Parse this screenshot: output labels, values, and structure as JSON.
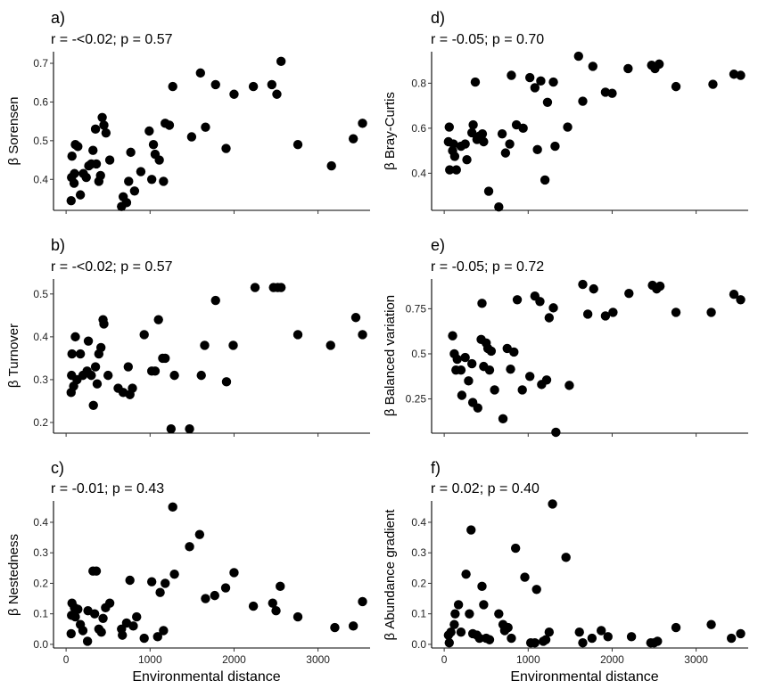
{
  "chart_data": [
    {
      "panel": "a)",
      "stat": "r = -<0.02; p = 0.57",
      "type": "scatter",
      "xlabel": "",
      "ylabel": "β Sorensen",
      "xlim": [
        -150,
        3620
      ],
      "ylim": [
        0.32,
        0.73
      ],
      "xticks": [
        {
          "v": 0,
          "t": "0"
        },
        {
          "v": 1000,
          "t": "1000"
        },
        {
          "v": 2000,
          "t": "2000"
        },
        {
          "v": 3000,
          "t": "3000"
        }
      ],
      "yticks": [
        {
          "v": 0.4,
          "t": "0.4"
        },
        {
          "v": 0.5,
          "t": "0.5"
        },
        {
          "v": 0.6,
          "t": "0.6"
        },
        {
          "v": 0.7,
          "t": "0.7"
        }
      ],
      "points": [
        [
          60,
          0.345
        ],
        [
          65,
          0.405
        ],
        [
          70,
          0.46
        ],
        [
          95,
          0.39
        ],
        [
          100,
          0.415
        ],
        [
          110,
          0.49
        ],
        [
          140,
          0.485
        ],
        [
          170,
          0.36
        ],
        [
          205,
          0.415
        ],
        [
          240,
          0.405
        ],
        [
          270,
          0.435
        ],
        [
          300,
          0.44
        ],
        [
          320,
          0.475
        ],
        [
          350,
          0.53
        ],
        [
          360,
          0.44
        ],
        [
          390,
          0.395
        ],
        [
          410,
          0.41
        ],
        [
          430,
          0.56
        ],
        [
          450,
          0.54
        ],
        [
          475,
          0.52
        ],
        [
          520,
          0.45
        ],
        [
          660,
          0.33
        ],
        [
          680,
          0.355
        ],
        [
          720,
          0.34
        ],
        [
          745,
          0.395
        ],
        [
          770,
          0.47
        ],
        [
          815,
          0.37
        ],
        [
          890,
          0.42
        ],
        [
          990,
          0.525
        ],
        [
          1020,
          0.4
        ],
        [
          1040,
          0.49
        ],
        [
          1060,
          0.465
        ],
        [
          1110,
          0.45
        ],
        [
          1160,
          0.395
        ],
        [
          1180,
          0.545
        ],
        [
          1230,
          0.54
        ],
        [
          1270,
          0.64
        ],
        [
          1495,
          0.51
        ],
        [
          1600,
          0.675
        ],
        [
          1660,
          0.535
        ],
        [
          1780,
          0.645
        ],
        [
          1905,
          0.48
        ],
        [
          2000,
          0.62
        ],
        [
          2230,
          0.64
        ],
        [
          2450,
          0.645
        ],
        [
          2510,
          0.62
        ],
        [
          2560,
          0.705
        ],
        [
          2760,
          0.49
        ],
        [
          3160,
          0.435
        ],
        [
          3420,
          0.505
        ],
        [
          3530,
          0.545
        ]
      ]
    },
    {
      "panel": "b)",
      "stat": "r = -<0.02; p = 0.57",
      "type": "scatter",
      "xlabel": "",
      "ylabel": "β Turnover",
      "xlim": [
        -150,
        3620
      ],
      "ylim": [
        0.175,
        0.535
      ],
      "xticks": [
        {
          "v": 0,
          "t": "0"
        },
        {
          "v": 1000,
          "t": "1000"
        },
        {
          "v": 2000,
          "t": "2000"
        },
        {
          "v": 3000,
          "t": "3000"
        }
      ],
      "yticks": [
        {
          "v": 0.2,
          "t": "0.2"
        },
        {
          "v": 0.3,
          "t": "0.3"
        },
        {
          "v": 0.4,
          "t": "0.4"
        },
        {
          "v": 0.5,
          "t": "0.5"
        }
      ],
      "points": [
        [
          60,
          0.27
        ],
        [
          65,
          0.31
        ],
        [
          70,
          0.36
        ],
        [
          90,
          0.285
        ],
        [
          110,
          0.4
        ],
        [
          130,
          0.3
        ],
        [
          170,
          0.36
        ],
        [
          200,
          0.31
        ],
        [
          250,
          0.32
        ],
        [
          265,
          0.39
        ],
        [
          300,
          0.31
        ],
        [
          325,
          0.24
        ],
        [
          350,
          0.33
        ],
        [
          370,
          0.29
        ],
        [
          390,
          0.36
        ],
        [
          415,
          0.375
        ],
        [
          440,
          0.44
        ],
        [
          450,
          0.43
        ],
        [
          500,
          0.31
        ],
        [
          620,
          0.28
        ],
        [
          680,
          0.27
        ],
        [
          740,
          0.33
        ],
        [
          760,
          0.265
        ],
        [
          790,
          0.28
        ],
        [
          930,
          0.405
        ],
        [
          1020,
          0.32
        ],
        [
          1060,
          0.32
        ],
        [
          1100,
          0.44
        ],
        [
          1150,
          0.35
        ],
        [
          1180,
          0.35
        ],
        [
          1250,
          0.185
        ],
        [
          1290,
          0.31
        ],
        [
          1470,
          0.185
        ],
        [
          1610,
          0.31
        ],
        [
          1650,
          0.38
        ],
        [
          1780,
          0.485
        ],
        [
          1910,
          0.295
        ],
        [
          1990,
          0.38
        ],
        [
          2250,
          0.515
        ],
        [
          2470,
          0.515
        ],
        [
          2520,
          0.515
        ],
        [
          2560,
          0.515
        ],
        [
          2760,
          0.405
        ],
        [
          3150,
          0.38
        ],
        [
          3450,
          0.445
        ],
        [
          3530,
          0.405
        ]
      ]
    },
    {
      "panel": "c)",
      "stat": "r = -0.01; p = 0.43",
      "type": "scatter",
      "xlabel": "Environmental distance",
      "ylabel": "β Nestedness",
      "xlim": [
        -150,
        3620
      ],
      "ylim": [
        -0.012,
        0.47
      ],
      "xticks": [
        {
          "v": 0,
          "t": "0"
        },
        {
          "v": 1000,
          "t": "1000"
        },
        {
          "v": 2000,
          "t": "2000"
        },
        {
          "v": 3000,
          "t": "3000"
        }
      ],
      "yticks": [
        {
          "v": 0.0,
          "t": "0.0"
        },
        {
          "v": 0.1,
          "t": "0.1"
        },
        {
          "v": 0.2,
          "t": "0.2"
        },
        {
          "v": 0.3,
          "t": "0.3"
        },
        {
          "v": 0.4,
          "t": "0.4"
        }
      ],
      "points": [
        [
          60,
          0.035
        ],
        [
          65,
          0.095
        ],
        [
          70,
          0.135
        ],
        [
          100,
          0.12
        ],
        [
          110,
          0.09
        ],
        [
          140,
          0.115
        ],
        [
          170,
          0.065
        ],
        [
          200,
          0.045
        ],
        [
          255,
          0.01
        ],
        [
          260,
          0.11
        ],
        [
          320,
          0.24
        ],
        [
          340,
          0.1
        ],
        [
          360,
          0.24
        ],
        [
          390,
          0.05
        ],
        [
          420,
          0.04
        ],
        [
          440,
          0.085
        ],
        [
          470,
          0.12
        ],
        [
          520,
          0.135
        ],
        [
          660,
          0.05
        ],
        [
          670,
          0.03
        ],
        [
          720,
          0.07
        ],
        [
          760,
          0.21
        ],
        [
          800,
          0.06
        ],
        [
          840,
          0.09
        ],
        [
          930,
          0.02
        ],
        [
          1020,
          0.205
        ],
        [
          1090,
          0.025
        ],
        [
          1120,
          0.17
        ],
        [
          1160,
          0.045
        ],
        [
          1180,
          0.2
        ],
        [
          1270,
          0.45
        ],
        [
          1290,
          0.23
        ],
        [
          1470,
          0.32
        ],
        [
          1590,
          0.36
        ],
        [
          1660,
          0.15
        ],
        [
          1770,
          0.16
        ],
        [
          1900,
          0.185
        ],
        [
          2000,
          0.235
        ],
        [
          2230,
          0.125
        ],
        [
          2460,
          0.135
        ],
        [
          2500,
          0.11
        ],
        [
          2550,
          0.19
        ],
        [
          2760,
          0.09
        ],
        [
          3200,
          0.055
        ],
        [
          3420,
          0.06
        ],
        [
          3530,
          0.14
        ]
      ]
    },
    {
      "panel": "d)",
      "stat": "r = -0.05; p = 0.70",
      "type": "scatter",
      "xlabel": "",
      "ylabel": "β Bray-Curtis",
      "xlim": [
        -150,
        3620
      ],
      "ylim": [
        0.235,
        0.94
      ],
      "xticks": [
        {
          "v": 0,
          "t": "0"
        },
        {
          "v": 1000,
          "t": "1000"
        },
        {
          "v": 2000,
          "t": "2000"
        },
        {
          "v": 3000,
          "t": "3000"
        }
      ],
      "yticks": [
        {
          "v": 0.4,
          "t": "0.4"
        },
        {
          "v": 0.6,
          "t": "0.6"
        },
        {
          "v": 0.8,
          "t": "0.8"
        }
      ],
      "points": [
        [
          50,
          0.54
        ],
        [
          60,
          0.605
        ],
        [
          65,
          0.415
        ],
        [
          100,
          0.5
        ],
        [
          110,
          0.53
        ],
        [
          125,
          0.475
        ],
        [
          145,
          0.415
        ],
        [
          200,
          0.52
        ],
        [
          250,
          0.53
        ],
        [
          270,
          0.46
        ],
        [
          330,
          0.58
        ],
        [
          345,
          0.615
        ],
        [
          370,
          0.805
        ],
        [
          390,
          0.55
        ],
        [
          420,
          0.565
        ],
        [
          455,
          0.575
        ],
        [
          470,
          0.54
        ],
        [
          530,
          0.32
        ],
        [
          650,
          0.25
        ],
        [
          690,
          0.575
        ],
        [
          730,
          0.49
        ],
        [
          780,
          0.53
        ],
        [
          800,
          0.835
        ],
        [
          860,
          0.615
        ],
        [
          940,
          0.6
        ],
        [
          1020,
          0.825
        ],
        [
          1080,
          0.78
        ],
        [
          1110,
          0.505
        ],
        [
          1150,
          0.81
        ],
        [
          1200,
          0.37
        ],
        [
          1230,
          0.715
        ],
        [
          1300,
          0.805
        ],
        [
          1320,
          0.52
        ],
        [
          1470,
          0.605
        ],
        [
          1600,
          0.92
        ],
        [
          1650,
          0.72
        ],
        [
          1770,
          0.875
        ],
        [
          1920,
          0.76
        ],
        [
          2000,
          0.755
        ],
        [
          2190,
          0.865
        ],
        [
          2470,
          0.88
        ],
        [
          2510,
          0.865
        ],
        [
          2560,
          0.885
        ],
        [
          2760,
          0.785
        ],
        [
          3200,
          0.795
        ],
        [
          3450,
          0.84
        ],
        [
          3530,
          0.835
        ]
      ]
    },
    {
      "panel": "e)",
      "stat": "r = -0.05; p = 0.72",
      "type": "scatter",
      "xlabel": "",
      "ylabel": "β Balanced variation",
      "xlim": [
        -150,
        3620
      ],
      "ylim": [
        0.06,
        0.915
      ],
      "xticks": [
        {
          "v": 0,
          "t": "0"
        },
        {
          "v": 1000,
          "t": "1000"
        },
        {
          "v": 2000,
          "t": "2000"
        },
        {
          "v": 3000,
          "t": "3000"
        }
      ],
      "yticks": [
        {
          "v": 0.25,
          "t": "0.25"
        },
        {
          "v": 0.5,
          "t": "0.5"
        },
        {
          "v": 0.75,
          "t": "0.75"
        }
      ],
      "points": [
        [
          100,
          0.6
        ],
        [
          120,
          0.5
        ],
        [
          140,
          0.41
        ],
        [
          155,
          0.47
        ],
        [
          200,
          0.41
        ],
        [
          210,
          0.27
        ],
        [
          250,
          0.48
        ],
        [
          290,
          0.35
        ],
        [
          330,
          0.445
        ],
        [
          340,
          0.23
        ],
        [
          400,
          0.2
        ],
        [
          440,
          0.58
        ],
        [
          450,
          0.78
        ],
        [
          470,
          0.43
        ],
        [
          500,
          0.56
        ],
        [
          520,
          0.53
        ],
        [
          540,
          0.41
        ],
        [
          560,
          0.515
        ],
        [
          600,
          0.3
        ],
        [
          700,
          0.14
        ],
        [
          750,
          0.53
        ],
        [
          790,
          0.415
        ],
        [
          830,
          0.51
        ],
        [
          870,
          0.8
        ],
        [
          930,
          0.3
        ],
        [
          1020,
          0.375
        ],
        [
          1080,
          0.82
        ],
        [
          1140,
          0.79
        ],
        [
          1160,
          0.33
        ],
        [
          1220,
          0.355
        ],
        [
          1250,
          0.7
        ],
        [
          1300,
          0.755
        ],
        [
          1330,
          0.065
        ],
        [
          1490,
          0.325
        ],
        [
          1650,
          0.885
        ],
        [
          1710,
          0.72
        ],
        [
          1780,
          0.86
        ],
        [
          1920,
          0.71
        ],
        [
          2010,
          0.73
        ],
        [
          2200,
          0.835
        ],
        [
          2480,
          0.88
        ],
        [
          2530,
          0.86
        ],
        [
          2570,
          0.875
        ],
        [
          2760,
          0.73
        ],
        [
          3180,
          0.73
        ],
        [
          3450,
          0.83
        ],
        [
          3530,
          0.8
        ]
      ]
    },
    {
      "panel": "f)",
      "stat": "r = 0.02; p = 0.40",
      "type": "scatter",
      "xlabel": "Environmental distance",
      "ylabel": "β Abundance gradient",
      "xlim": [
        -150,
        3620
      ],
      "ylim": [
        -0.012,
        0.47
      ],
      "xticks": [
        {
          "v": 0,
          "t": "0"
        },
        {
          "v": 1000,
          "t": "1000"
        },
        {
          "v": 2000,
          "t": "2000"
        },
        {
          "v": 3000,
          "t": "3000"
        }
      ],
      "yticks": [
        {
          "v": 0.0,
          "t": "0.0"
        },
        {
          "v": 0.1,
          "t": "0.1"
        },
        {
          "v": 0.2,
          "t": "0.2"
        },
        {
          "v": 0.3,
          "t": "0.3"
        },
        {
          "v": 0.4,
          "t": "0.4"
        }
      ],
      "points": [
        [
          50,
          0.03
        ],
        [
          60,
          0.005
        ],
        [
          80,
          0.04
        ],
        [
          120,
          0.065
        ],
        [
          130,
          0.1
        ],
        [
          170,
          0.13
        ],
        [
          200,
          0.04
        ],
        [
          260,
          0.23
        ],
        [
          300,
          0.1
        ],
        [
          320,
          0.375
        ],
        [
          340,
          0.035
        ],
        [
          390,
          0.03
        ],
        [
          420,
          0.02
        ],
        [
          450,
          0.19
        ],
        [
          470,
          0.13
        ],
        [
          500,
          0.02
        ],
        [
          540,
          0.015
        ],
        [
          650,
          0.1
        ],
        [
          700,
          0.065
        ],
        [
          720,
          0.045
        ],
        [
          760,
          0.055
        ],
        [
          800,
          0.02
        ],
        [
          850,
          0.315
        ],
        [
          960,
          0.22
        ],
        [
          1030,
          0.005
        ],
        [
          1080,
          0.005
        ],
        [
          1100,
          0.18
        ],
        [
          1180,
          0.01
        ],
        [
          1210,
          0.015
        ],
        [
          1250,
          0.04
        ],
        [
          1290,
          0.46
        ],
        [
          1450,
          0.285
        ],
        [
          1610,
          0.04
        ],
        [
          1650,
          0.005
        ],
        [
          1760,
          0.02
        ],
        [
          1870,
          0.045
        ],
        [
          1950,
          0.025
        ],
        [
          2230,
          0.025
        ],
        [
          2460,
          0.005
        ],
        [
          2500,
          0.005
        ],
        [
          2540,
          0.01
        ],
        [
          2760,
          0.055
        ],
        [
          3180,
          0.065
        ],
        [
          3420,
          0.02
        ],
        [
          3530,
          0.035
        ]
      ]
    }
  ]
}
